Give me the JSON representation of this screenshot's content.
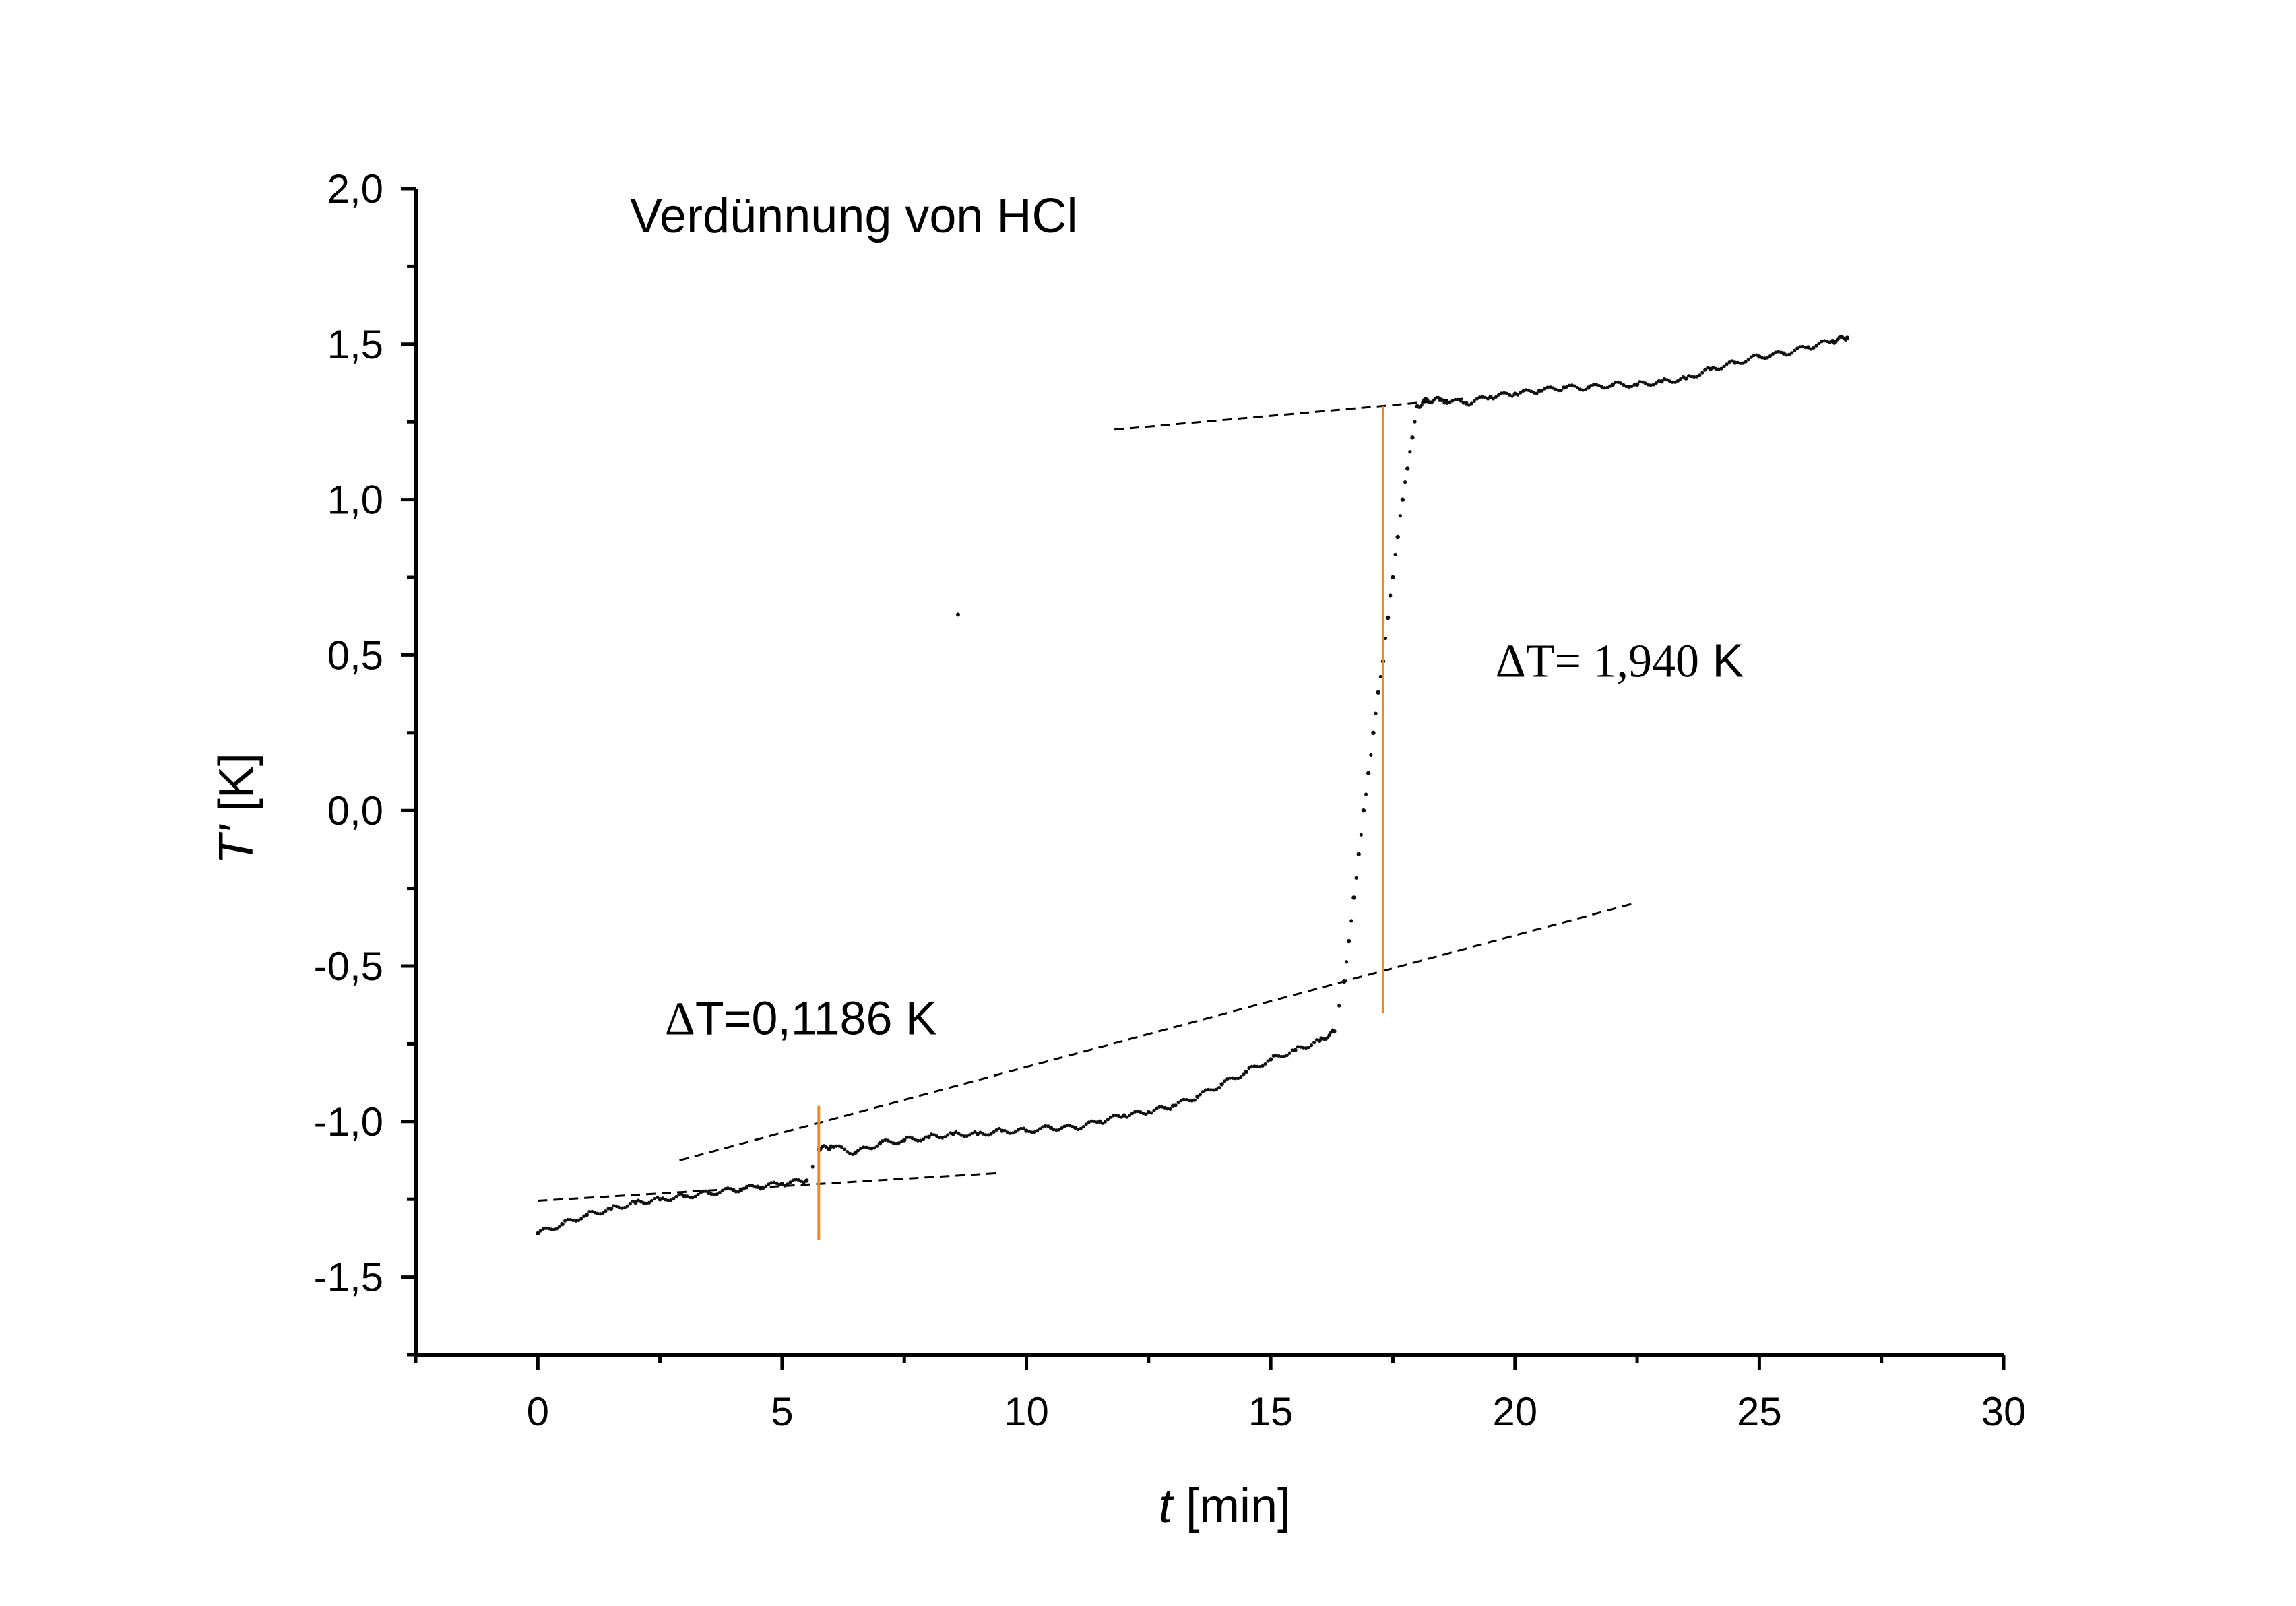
{
  "chart_data": {
    "type": "scatter",
    "title": "Verdünnung von HCl",
    "xlabel": {
      "var": "t",
      "unit": " [min]"
    },
    "ylabel": {
      "var": "T'",
      "unit": " [K]"
    },
    "xlim": [
      -2.5,
      30
    ],
    "ylim": [
      -1.75,
      2.0
    ],
    "x_ticks": [
      0,
      5,
      10,
      15,
      20,
      25,
      30
    ],
    "x_tick_labels": [
      "0",
      "5",
      "10",
      "15",
      "20",
      "25",
      "30"
    ],
    "y_ticks": [
      -1.5,
      -1.0,
      -0.5,
      0.0,
      0.5,
      1.0,
      1.5,
      2.0
    ],
    "y_tick_labels": [
      "-1,5",
      "-1,0",
      "-0,5",
      "0,0",
      "0,5",
      "1,0",
      "1,5",
      "2,0"
    ],
    "x_minor_step": 2.5,
    "y_minor_step": 0.25,
    "grid": false,
    "series": [
      {
        "x": [
          0.0,
          0.5,
          1.0,
          1.5,
          2.0,
          2.5,
          3.0,
          3.5,
          4.0,
          4.5,
          5.0,
          5.5,
          5.75,
          6.0,
          6.5,
          7.0,
          7.5,
          8.0,
          8.5,
          9.0,
          9.5,
          10.0,
          10.5,
          11.0,
          11.5,
          12.0,
          12.5,
          13.0,
          13.5,
          14.0,
          14.5,
          15.0,
          15.5,
          16.0,
          16.3,
          16.5,
          16.6,
          16.7,
          16.8,
          16.9,
          17.0,
          17.1,
          17.2,
          17.3,
          17.4,
          17.5,
          17.6,
          17.7,
          17.8,
          17.9,
          18.0,
          18.2,
          18.5,
          19.0,
          19.5,
          20.0,
          20.5,
          21.0,
          21.5,
          22.0,
          22.5,
          23.0,
          23.5,
          24.0,
          24.5,
          25.0,
          25.5,
          26.0,
          26.5,
          26.8
        ],
        "y": [
          -1.36,
          -1.33,
          -1.3,
          -1.28,
          -1.26,
          -1.25,
          -1.24,
          -1.23,
          -1.22,
          -1.21,
          -1.2,
          -1.19,
          -1.09,
          -1.08,
          -1.1,
          -1.07,
          -1.06,
          -1.05,
          -1.04,
          -1.04,
          -1.03,
          -1.03,
          -1.02,
          -1.02,
          -1.0,
          -0.98,
          -0.97,
          -0.95,
          -0.92,
          -0.88,
          -0.84,
          -0.8,
          -0.77,
          -0.74,
          -0.71,
          -0.55,
          -0.42,
          -0.28,
          -0.14,
          0.0,
          0.12,
          0.25,
          0.38,
          0.48,
          0.62,
          0.75,
          0.88,
          1.0,
          1.1,
          1.2,
          1.3,
          1.32,
          1.32,
          1.31,
          1.33,
          1.34,
          1.35,
          1.36,
          1.36,
          1.37,
          1.37,
          1.38,
          1.39,
          1.42,
          1.44,
          1.46,
          1.47,
          1.49,
          1.51,
          1.52
        ]
      }
    ],
    "outlier_point": {
      "x": 8.6,
      "y": 0.63
    },
    "fit_lines": [
      {
        "x": [
          2.9,
          22.4
        ],
        "y": [
          -1.125,
          -0.3
        ]
      },
      {
        "x": [
          0.0,
          9.5
        ],
        "y": [
          -1.255,
          -1.165
        ]
      },
      {
        "x": [
          11.8,
          19.0
        ],
        "y": [
          1.225,
          1.325
        ]
      }
    ],
    "delta_markers": [
      {
        "x": 5.75,
        "y": [
          -1.38,
          -0.95
        ],
        "color": "#f08a1c"
      },
      {
        "x": 17.3,
        "y": [
          -0.65,
          1.3
        ],
        "color": "#f08a1c"
      }
    ],
    "annotations": [
      {
        "id": "annot-small",
        "symbol": "Δ",
        "text": "T=0,1186 K",
        "x": 2.6,
        "y": -0.72
      },
      {
        "id": "annot-large",
        "symbol": "ΔT= 1,940",
        "text": " K",
        "x": 19.6,
        "y": 0.43
      }
    ]
  }
}
